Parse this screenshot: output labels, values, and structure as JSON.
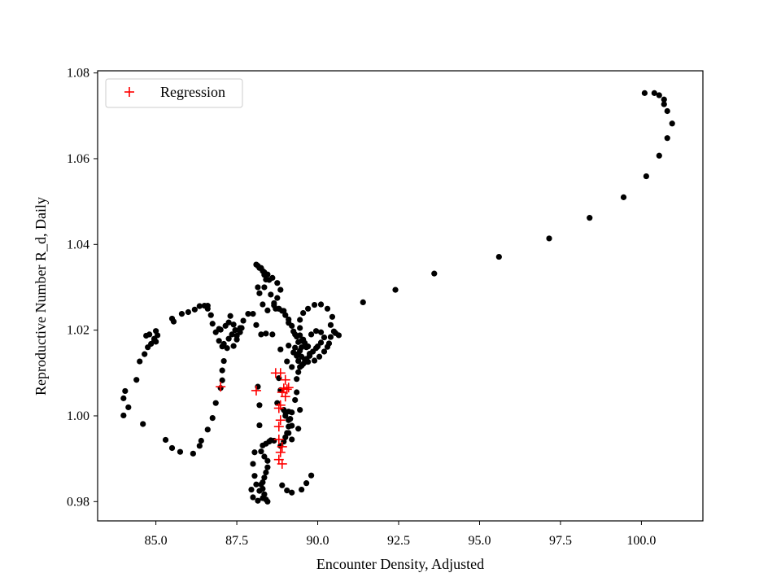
{
  "chart_data": {
    "type": "scatter",
    "title": "",
    "xlabel": "Encounter Density, Adjusted",
    "ylabel": "Reproductive Number R_d, Daily",
    "xlim": [
      83.2,
      101.9
    ],
    "ylim": [
      0.9755,
      1.0805
    ],
    "xticks": [
      85.0,
      87.5,
      90.0,
      92.5,
      95.0,
      97.5,
      100.0
    ],
    "xtick_labels": [
      "85.0",
      "87.5",
      "90.0",
      "92.5",
      "95.0",
      "97.5",
      "100.0"
    ],
    "yticks": [
      0.98,
      1.0,
      1.02,
      1.04,
      1.06,
      1.08
    ],
    "ytick_labels": [
      "0.98",
      "1.00",
      "1.02",
      "1.04",
      "1.06",
      "1.08"
    ],
    "grid": false,
    "legend_position": "top-left",
    "series": [
      {
        "marker": "dot",
        "color": "#000000",
        "points": [
          [
            100.1,
            1.0753
          ],
          [
            100.4,
            1.0753
          ],
          [
            100.55,
            1.0748
          ],
          [
            100.7,
            1.0738
          ],
          [
            100.7,
            1.0727
          ],
          [
            100.8,
            1.0711
          ],
          [
            100.95,
            1.0682
          ],
          [
            100.8,
            1.0648
          ],
          [
            100.55,
            1.0607
          ],
          [
            100.15,
            1.0559
          ],
          [
            99.45,
            1.051
          ],
          [
            98.4,
            1.0462
          ],
          [
            97.15,
            1.0414
          ],
          [
            95.6,
            1.0371
          ],
          [
            93.6,
            1.0332
          ],
          [
            92.4,
            1.0294
          ],
          [
            91.4,
            1.0265
          ],
          [
            90.65,
            1.0188
          ],
          [
            90.55,
            1.0193
          ],
          [
            90.5,
            1.0197
          ],
          [
            90.4,
            1.0184
          ],
          [
            90.35,
            1.0169
          ],
          [
            90.4,
            1.0212
          ],
          [
            90.45,
            1.0231
          ],
          [
            90.3,
            1.025
          ],
          [
            90.1,
            1.026
          ],
          [
            89.9,
            1.0259
          ],
          [
            89.7,
            1.025
          ],
          [
            89.55,
            1.024
          ],
          [
            89.45,
            1.0224
          ],
          [
            89.45,
            1.0205
          ],
          [
            89.45,
            1.0188
          ],
          [
            89.4,
            1.0172
          ],
          [
            89.3,
            1.0159
          ],
          [
            89.1,
            1.0164
          ],
          [
            89.25,
            1.0148
          ],
          [
            89.4,
            1.0145
          ],
          [
            89.5,
            1.0138
          ],
          [
            89.6,
            1.0132
          ],
          [
            89.7,
            1.0126
          ],
          [
            89.9,
            1.0129
          ],
          [
            90.05,
            1.0138
          ],
          [
            90.2,
            1.015
          ],
          [
            90.3,
            1.0161
          ],
          [
            90.2,
            1.0183
          ],
          [
            90.1,
            1.0195
          ],
          [
            89.95,
            1.0198
          ],
          [
            89.8,
            1.019
          ],
          [
            89.6,
            1.017
          ],
          [
            89.5,
            1.016
          ],
          [
            89.45,
            1.0152
          ],
          [
            89.35,
            1.014
          ],
          [
            89.4,
            1.0128
          ],
          [
            89.55,
            1.0121
          ],
          [
            89.65,
            1.0133
          ],
          [
            89.75,
            1.014
          ],
          [
            89.85,
            1.015
          ],
          [
            90.0,
            1.0162
          ],
          [
            90.1,
            1.0171
          ],
          [
            89.95,
            1.0158
          ],
          [
            89.7,
            1.0162
          ],
          [
            89.55,
            1.0178
          ],
          [
            89.35,
            1.0185
          ],
          [
            89.25,
            1.0197
          ],
          [
            89.1,
            1.0217
          ],
          [
            89.0,
            1.0235
          ],
          [
            88.9,
            1.0245
          ],
          [
            88.8,
            1.025
          ],
          [
            88.65,
            1.0263
          ],
          [
            88.55,
            1.0283
          ],
          [
            88.35,
            1.03
          ],
          [
            88.4,
            1.0318
          ],
          [
            88.35,
            1.0329
          ],
          [
            88.3,
            1.0338
          ],
          [
            88.2,
            1.0345
          ],
          [
            88.1,
            1.0353
          ],
          [
            88.15,
            1.035
          ],
          [
            88.25,
            1.0345
          ],
          [
            88.35,
            1.0335
          ],
          [
            88.45,
            1.033
          ],
          [
            88.6,
            1.0322
          ],
          [
            88.75,
            1.031
          ],
          [
            88.85,
            1.0294
          ],
          [
            88.75,
            1.0275
          ],
          [
            88.65,
            1.0258
          ],
          [
            88.8,
            1.025
          ],
          [
            88.95,
            1.0245
          ],
          [
            89.1,
            1.0225
          ],
          [
            89.2,
            1.021
          ],
          [
            89.3,
            1.019
          ],
          [
            89.5,
            1.0175
          ],
          [
            89.65,
            1.016
          ],
          [
            89.75,
            1.0145
          ],
          [
            89.6,
            1.0125
          ],
          [
            89.5,
            1.0117
          ],
          [
            89.4,
            1.0102
          ],
          [
            89.35,
            1.0086
          ],
          [
            89.45,
            1.0114
          ],
          [
            89.2,
            1.0114
          ],
          [
            89.05,
            1.0127
          ],
          [
            88.85,
            1.0155
          ],
          [
            88.6,
            1.019
          ],
          [
            88.4,
            1.0192
          ],
          [
            88.25,
            1.019
          ],
          [
            88.1,
            1.0212
          ],
          [
            88.0,
            1.0238
          ],
          [
            87.85,
            1.0238
          ],
          [
            87.7,
            1.0222
          ],
          [
            87.6,
            1.0205
          ],
          [
            87.5,
            1.0178
          ],
          [
            87.4,
            1.0163
          ],
          [
            87.2,
            1.0158
          ],
          [
            87.05,
            1.0162
          ],
          [
            86.95,
            1.0175
          ],
          [
            86.85,
            1.0195
          ],
          [
            86.75,
            1.0215
          ],
          [
            86.7,
            1.0235
          ],
          [
            86.6,
            1.025
          ],
          [
            86.5,
            1.0257
          ],
          [
            86.35,
            1.0256
          ],
          [
            86.2,
            1.0248
          ],
          [
            86.0,
            1.0242
          ],
          [
            85.8,
            1.0238
          ],
          [
            85.5,
            1.0227
          ],
          [
            85.55,
            1.022
          ],
          [
            86.6,
            1.0257
          ],
          [
            86.95,
            1.0203
          ],
          [
            87.0,
            1.0201
          ],
          [
            87.15,
            1.021
          ],
          [
            87.25,
            1.0218
          ],
          [
            87.3,
            1.0233
          ],
          [
            87.4,
            1.0213
          ],
          [
            87.45,
            1.02
          ],
          [
            87.35,
            1.019
          ],
          [
            87.25,
            1.018
          ],
          [
            87.1,
            1.0168
          ],
          [
            87.5,
            1.0187
          ],
          [
            87.6,
            1.0195
          ],
          [
            87.65,
            1.0205
          ],
          [
            87.1,
            1.0128
          ],
          [
            87.05,
            1.0106
          ],
          [
            87.05,
            1.0083
          ],
          [
            87.0,
            1.0065
          ],
          [
            86.85,
            1.003
          ],
          [
            86.75,
            0.9995
          ],
          [
            86.6,
            0.9968
          ],
          [
            86.4,
            0.9942
          ],
          [
            86.35,
            0.993
          ],
          [
            86.15,
            0.9912
          ],
          [
            85.75,
            0.9916
          ],
          [
            85.5,
            0.9925
          ],
          [
            85.3,
            0.9944
          ],
          [
            84.6,
            0.9981
          ],
          [
            84.4,
            1.0084
          ],
          [
            84.05,
            1.0058
          ],
          [
            84.15,
            1.002
          ],
          [
            84.0,
            1.0041
          ],
          [
            84.0,
            1.0001
          ],
          [
            84.5,
            1.0127
          ],
          [
            84.65,
            1.0144
          ],
          [
            84.75,
            1.016
          ],
          [
            84.85,
            1.0168
          ],
          [
            84.95,
            1.0176
          ],
          [
            85.05,
            1.0188
          ],
          [
            85.0,
            1.0198
          ],
          [
            84.8,
            1.019
          ],
          [
            84.7,
            1.0187
          ],
          [
            84.95,
            1.018
          ],
          [
            85.0,
            1.0173
          ],
          [
            88.45,
            1.0246
          ],
          [
            88.7,
            1.025
          ],
          [
            88.3,
            1.026
          ],
          [
            88.2,
            1.0286
          ],
          [
            88.15,
            1.03
          ],
          [
            88.5,
            1.0317
          ],
          [
            88.85,
            1.006
          ],
          [
            88.75,
            1.003
          ],
          [
            88.95,
            1.0014
          ],
          [
            89.0,
            1.0
          ],
          [
            89.1,
            0.999
          ],
          [
            89.1,
            0.9975
          ],
          [
            89.05,
            0.996
          ],
          [
            89.0,
            0.995
          ],
          [
            88.95,
            0.994
          ],
          [
            88.85,
            0.993
          ],
          [
            88.65,
            0.9942
          ],
          [
            88.55,
            0.9943
          ],
          [
            88.5,
            0.994
          ],
          [
            88.4,
            0.9935
          ],
          [
            88.3,
            0.9931
          ],
          [
            88.25,
            0.9917
          ],
          [
            88.35,
            0.9905
          ],
          [
            88.45,
            0.9895
          ],
          [
            88.45,
            0.988
          ],
          [
            88.4,
            0.9868
          ],
          [
            88.35,
            0.9856
          ],
          [
            88.3,
            0.9845
          ],
          [
            88.3,
            0.983
          ],
          [
            88.35,
            0.9817
          ],
          [
            88.4,
            0.9805
          ],
          [
            88.45,
            0.98
          ],
          [
            88.3,
            0.9808
          ],
          [
            88.2,
            0.9825
          ],
          [
            88.25,
            0.984
          ],
          [
            88.05,
            0.9915
          ],
          [
            88.0,
            0.9888
          ],
          [
            88.05,
            0.986
          ],
          [
            88.1,
            0.984
          ],
          [
            87.95,
            0.9828
          ],
          [
            88.0,
            0.981
          ],
          [
            88.15,
            0.9802
          ],
          [
            88.9,
            0.9838
          ],
          [
            89.05,
            0.9826
          ],
          [
            89.2,
            0.9821
          ],
          [
            89.5,
            0.9828
          ],
          [
            89.65,
            0.9843
          ],
          [
            89.8,
            0.9861
          ],
          [
            89.2,
            0.9945
          ],
          [
            89.1,
            0.996
          ],
          [
            89.2,
            0.9977
          ],
          [
            89.15,
            0.9993
          ],
          [
            89.0,
            1.0009
          ],
          [
            89.1,
            1.001
          ],
          [
            89.2,
            1.0008
          ],
          [
            89.4,
            0.997
          ],
          [
            89.45,
            1.0014
          ],
          [
            89.3,
            1.0037
          ],
          [
            89.35,
            1.0055
          ],
          [
            88.2,
            0.9978
          ],
          [
            88.2,
            1.0025
          ],
          [
            88.15,
            1.0068
          ],
          [
            88.8,
            1.0088
          ]
        ]
      },
      {
        "name": "Regression",
        "marker": "plus",
        "color": "#ff0000",
        "points": [
          [
            87.0,
            1.0068
          ],
          [
            88.1,
            1.0059
          ],
          [
            88.7,
            1.01
          ],
          [
            88.85,
            1.01
          ],
          [
            89.0,
            1.0084
          ],
          [
            88.95,
            1.0064
          ],
          [
            89.05,
            1.0062
          ],
          [
            89.1,
            1.0066
          ],
          [
            88.9,
            1.0055
          ],
          [
            89.0,
            1.0045
          ],
          [
            88.85,
            1.0025
          ],
          [
            88.8,
            1.0018
          ],
          [
            88.85,
            0.999
          ],
          [
            88.8,
            0.9975
          ],
          [
            88.8,
            0.9945
          ],
          [
            88.9,
            0.9928
          ],
          [
            88.85,
            0.9915
          ],
          [
            88.8,
            0.9898
          ],
          [
            88.9,
            0.9888
          ]
        ]
      }
    ]
  }
}
